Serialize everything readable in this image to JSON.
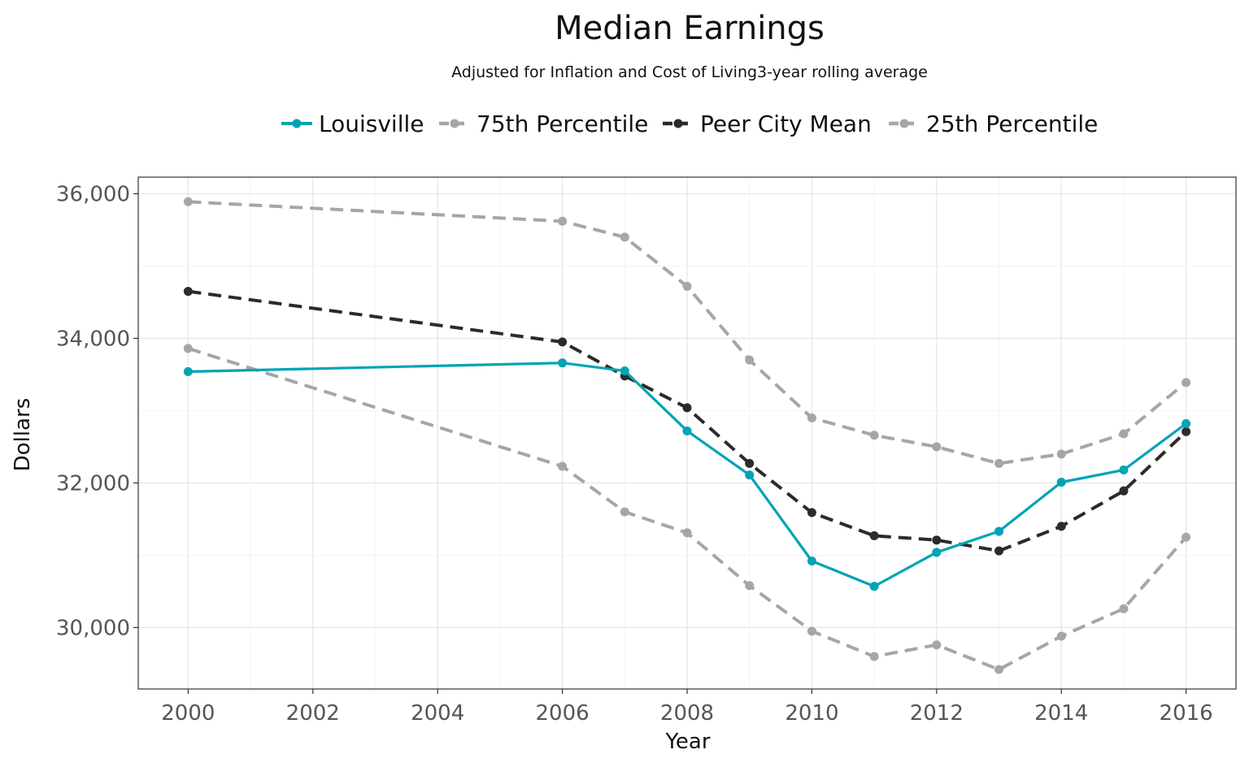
{
  "chart_data": {
    "type": "line",
    "title": "Median Earnings",
    "subtitle": "Adjusted for Inflation and Cost of Living3-year rolling average",
    "xlabel": "Year",
    "ylabel": "Dollars",
    "xlim": [
      1999.2,
      2016.8
    ],
    "ylim": [
      29150,
      36230
    ],
    "x_ticks": [
      2000,
      2002,
      2004,
      2006,
      2008,
      2010,
      2012,
      2014,
      2016
    ],
    "x_tick_labels": [
      "2000",
      "2002",
      "2004",
      "2006",
      "2008",
      "2010",
      "2012",
      "2014",
      "2016"
    ],
    "y_ticks": [
      30000,
      32000,
      34000,
      36000
    ],
    "y_tick_labels": [
      "30,000",
      "32,000",
      "34,000",
      "36,000"
    ],
    "grid": true,
    "legend_position": "top",
    "x": [
      2000,
      2006,
      2007,
      2008,
      2009,
      2010,
      2011,
      2012,
      2013,
      2014,
      2015,
      2016
    ],
    "series": [
      {
        "name": "Louisville",
        "color": "#00a3b4",
        "style": "solid",
        "values": [
          33540,
          33660,
          33550,
          32720,
          32110,
          30920,
          30570,
          31040,
          31330,
          32010,
          32180,
          32820
        ]
      },
      {
        "name": "75th Percentile",
        "color": "#a6a6a6",
        "style": "dashed",
        "values": [
          35890,
          35620,
          35400,
          34720,
          33700,
          32900,
          32660,
          32500,
          32270,
          32400,
          32680,
          33390
        ]
      },
      {
        "name": "Peer City Mean",
        "color": "#2b2b2b",
        "style": "dashed",
        "values": [
          34650,
          33950,
          33480,
          33040,
          32270,
          31590,
          31270,
          31210,
          31060,
          31400,
          31890,
          32710
        ]
      },
      {
        "name": "25th Percentile",
        "color": "#a6a6a6",
        "style": "dashed",
        "values": [
          33860,
          32230,
          31600,
          31310,
          30580,
          29950,
          29600,
          29760,
          29420,
          29880,
          30260,
          31250
        ]
      }
    ]
  }
}
